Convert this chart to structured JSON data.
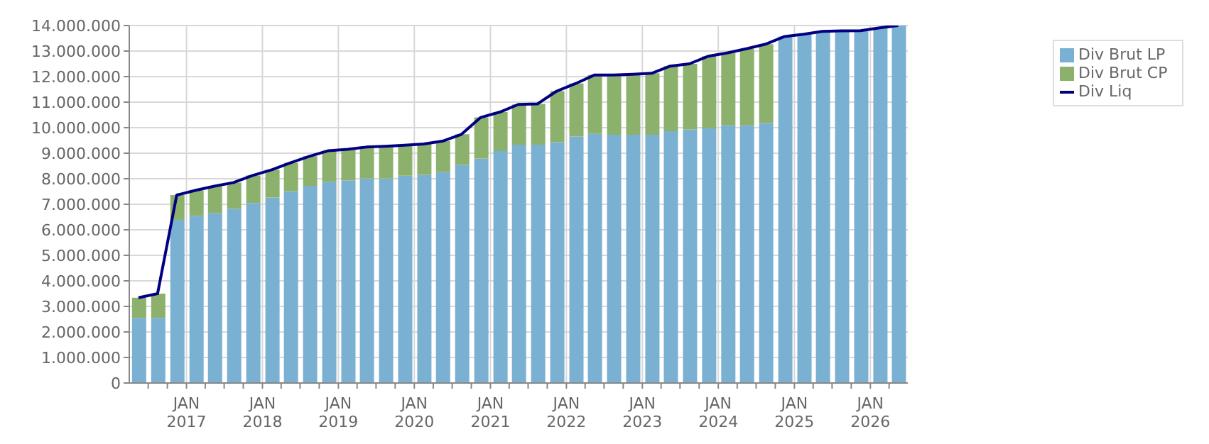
{
  "chart_data": {
    "type": "bar",
    "stacked": true,
    "grid": true,
    "legend": "top right",
    "marker": "none",
    "x": [
      "2016-05-15",
      "2016-08-15",
      "2016-11-15",
      "2017-02-15",
      "2017-05-15",
      "2017-08-15",
      "2017-11-15",
      "2018-02-15",
      "2018-05-15",
      "2018-08-15",
      "2018-11-15",
      "2019-02-15",
      "2019-05-15",
      "2019-08-15",
      "2019-11-15",
      "2020-02-15",
      "2020-05-15",
      "2020-08-15",
      "2020-11-15",
      "2021-02-15",
      "2021-05-15",
      "2021-08-15",
      "2021-11-15",
      "2022-02-15",
      "2022-05-15",
      "2022-08-15",
      "2022-11-15",
      "2023-02-15",
      "2023-05-15",
      "2023-08-15",
      "2023-11-15",
      "2024-02-15",
      "2024-05-15",
      "2024-08-15",
      "2024-11-15",
      "2025-02-15",
      "2025-05-15",
      "2025-08-15",
      "2025-11-15",
      "2026-02-15",
      "2026-05-15"
    ],
    "xlim": [
      "2016-04-01",
      "2026-06-30"
    ],
    "xticks": [
      {
        "value": "2016-07-01",
        "label": null
      },
      {
        "value": "2016-10-01",
        "label": null
      },
      {
        "value": "2017-01-01",
        "label": "JAN 2017"
      },
      {
        "value": "2017-04-01",
        "label": null
      },
      {
        "value": "2017-07-01",
        "label": null
      },
      {
        "value": "2017-10-01",
        "label": null
      },
      {
        "value": "2018-01-01",
        "label": "JAN 2018"
      },
      {
        "value": "2018-04-01",
        "label": null
      },
      {
        "value": "2018-07-01",
        "label": null
      },
      {
        "value": "2018-10-01",
        "label": null
      },
      {
        "value": "2019-01-01",
        "label": "JAN 2019"
      },
      {
        "value": "2019-04-01",
        "label": null
      },
      {
        "value": "2019-07-01",
        "label": null
      },
      {
        "value": "2019-10-01",
        "label": null
      },
      {
        "value": "2020-01-01",
        "label": "JAN 2020"
      },
      {
        "value": "2020-04-01",
        "label": null
      },
      {
        "value": "2020-07-01",
        "label": null
      },
      {
        "value": "2020-10-01",
        "label": null
      },
      {
        "value": "2021-01-01",
        "label": "JAN 2021"
      },
      {
        "value": "2021-04-01",
        "label": null
      },
      {
        "value": "2021-07-01",
        "label": null
      },
      {
        "value": "2021-10-01",
        "label": null
      },
      {
        "value": "2022-01-01",
        "label": "JAN 2022"
      },
      {
        "value": "2022-04-01",
        "label": null
      },
      {
        "value": "2022-07-01",
        "label": null
      },
      {
        "value": "2022-10-01",
        "label": null
      },
      {
        "value": "2023-01-01",
        "label": "JAN 2023"
      },
      {
        "value": "2023-04-01",
        "label": null
      },
      {
        "value": "2023-07-01",
        "label": null
      },
      {
        "value": "2023-10-01",
        "label": null
      },
      {
        "value": "2024-01-01",
        "label": "JAN 2024"
      },
      {
        "value": "2024-04-01",
        "label": null
      },
      {
        "value": "2024-07-01",
        "label": null
      },
      {
        "value": "2024-10-01",
        "label": null
      },
      {
        "value": "2025-01-01",
        "label": "JAN 2025"
      },
      {
        "value": "2025-04-01",
        "label": null
      },
      {
        "value": "2025-07-01",
        "label": null
      },
      {
        "value": "2025-10-01",
        "label": null
      },
      {
        "value": "2026-01-01",
        "label": "JAN 2026"
      },
      {
        "value": "2026-04-01",
        "label": null
      }
    ],
    "ylim": [
      0,
      14000000
    ],
    "yticks": [
      {
        "value": 0,
        "label": "0"
      },
      {
        "value": 1000000,
        "label": "1.000.000"
      },
      {
        "value": 2000000,
        "label": "2.000.000"
      },
      {
        "value": 3000000,
        "label": "3.000.000"
      },
      {
        "value": 4000000,
        "label": "4.000.000"
      },
      {
        "value": 5000000,
        "label": "5.000.000"
      },
      {
        "value": 6000000,
        "label": "6.000.000"
      },
      {
        "value": 7000000,
        "label": "7.000.000"
      },
      {
        "value": 8000000,
        "label": "8.000.000"
      },
      {
        "value": 9000000,
        "label": "9.000.000"
      },
      {
        "value": 10000000,
        "label": "10.000.000"
      },
      {
        "value": 11000000,
        "label": "11.000.000"
      },
      {
        "value": 12000000,
        "label": "12.000.000"
      },
      {
        "value": 13000000,
        "label": "13.000.000"
      },
      {
        "value": 14000000,
        "label": "14.000.000"
      }
    ],
    "series": [
      {
        "name": "Div Brut LP",
        "color": "#7ab0d2",
        "values": [
          2550000,
          2550000,
          6390000,
          6550000,
          6660000,
          6820000,
          7050000,
          7260000,
          7510000,
          7720000,
          7880000,
          7940000,
          8010000,
          8010000,
          8120000,
          8150000,
          8260000,
          8540000,
          8790000,
          9080000,
          9330000,
          9330000,
          9430000,
          9650000,
          9760000,
          9720000,
          9720000,
          9720000,
          9860000,
          9930000,
          9970000,
          10090000,
          10090000,
          10180000,
          13570000,
          13660000,
          13770000,
          13790000,
          13800000,
          13910000,
          14000000
        ]
      },
      {
        "name": "Div Brut CP",
        "color": "#8cb16c",
        "values": [
          790000,
          950000,
          970000,
          1000000,
          1050000,
          1030000,
          1080000,
          1090000,
          1110000,
          1160000,
          1220000,
          1210000,
          1230000,
          1260000,
          1190000,
          1210000,
          1210000,
          1200000,
          1610000,
          1530000,
          1580000,
          1600000,
          2000000,
          2080000,
          2300000,
          2340000,
          2370000,
          2410000,
          2550000,
          2570000,
          2830000,
          2840000,
          3000000,
          3090000,
          0,
          0,
          0,
          0,
          0,
          0,
          0
        ]
      },
      {
        "name": "Div Liq",
        "type": "line",
        "color": "#000080",
        "values": [
          3340000,
          3500000,
          7360000,
          7550000,
          7710000,
          7850000,
          8130000,
          8350000,
          8620000,
          8880000,
          9100000,
          9150000,
          9240000,
          9270000,
          9310000,
          9360000,
          9470000,
          9740000,
          10400000,
          10610000,
          10910000,
          10930000,
          11430000,
          11730000,
          12060000,
          12060000,
          12090000,
          12130000,
          12410000,
          12500000,
          12800000,
          12930000,
          13090000,
          13270000,
          13570000,
          13660000,
          13770000,
          13790000,
          13800000,
          13910000,
          14000000
        ]
      }
    ]
  }
}
